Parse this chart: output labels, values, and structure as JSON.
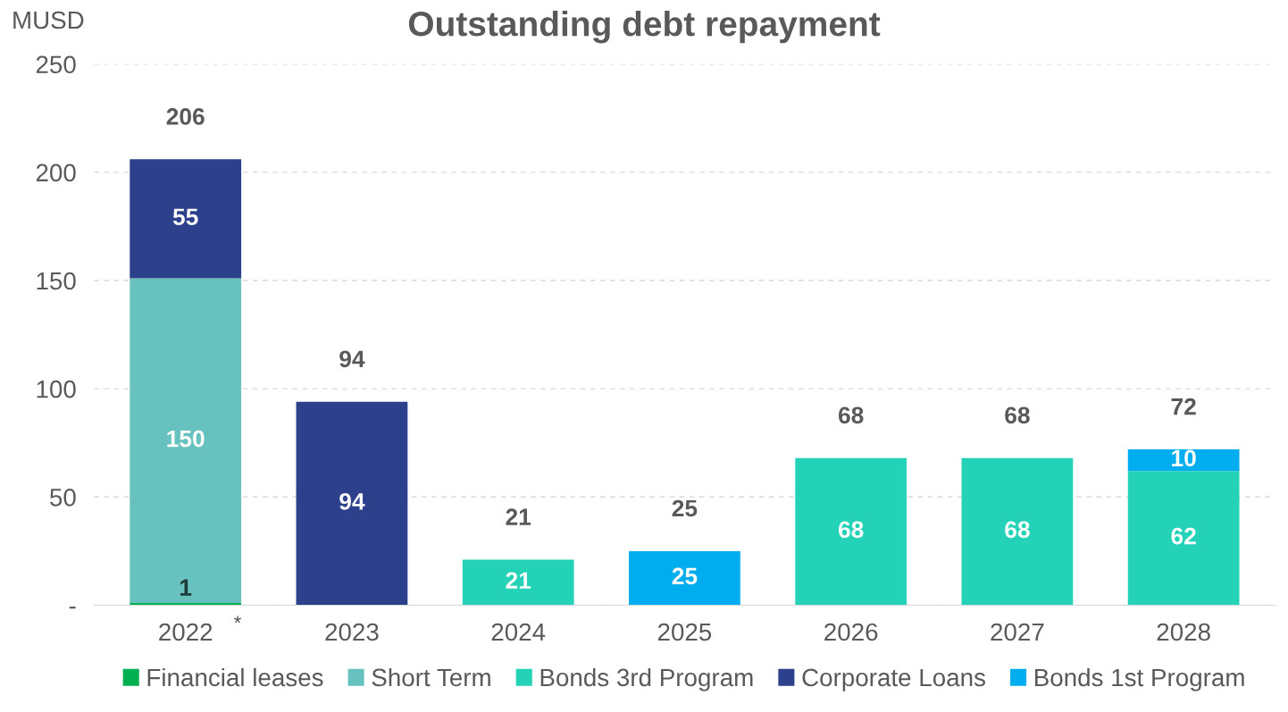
{
  "chart_data": {
    "type": "bar",
    "title": "Outstanding debt repayment",
    "ylabel": "MUSD",
    "stacked": true,
    "categories": [
      "2022",
      "2023",
      "2024",
      "2025",
      "2026",
      "2027",
      "2028"
    ],
    "series": [
      {
        "name": "Financial leases",
        "color": "#00b050",
        "values": [
          1,
          0,
          0,
          0,
          0,
          0,
          0
        ],
        "value_labels": [
          "1",
          null,
          null,
          null,
          null,
          null,
          null
        ]
      },
      {
        "name": "Short Term",
        "color": "#67c2bf",
        "values": [
          150,
          0,
          0,
          0,
          0,
          0,
          0
        ],
        "value_labels": [
          "150",
          null,
          null,
          null,
          null,
          null,
          null
        ]
      },
      {
        "name": "Bonds 3rd Program",
        "color": "#24d3b7",
        "values": [
          0,
          0,
          21,
          0,
          68,
          68,
          62
        ],
        "value_labels": [
          null,
          null,
          "21",
          null,
          "68",
          "68",
          "62"
        ]
      },
      {
        "name": "Corporate Loans",
        "color": "#2c408c",
        "values": [
          55,
          94,
          0,
          0,
          0,
          0,
          0
        ],
        "value_labels": [
          "55",
          "94",
          null,
          null,
          null,
          null,
          null
        ]
      },
      {
        "name": "Bonds 1st Program",
        "color": "#00aeef",
        "values": [
          0,
          0,
          0,
          25,
          0,
          0,
          10
        ],
        "value_labels": [
          null,
          null,
          null,
          "25",
          null,
          null,
          "10"
        ]
      }
    ],
    "totals": [
      "206",
      "94",
      "21",
      "25",
      "68",
      "68",
      "72"
    ],
    "ylim": [
      0,
      250
    ],
    "yticks": [
      {
        "value": 0,
        "label": "-"
      },
      50,
      100,
      150,
      200,
      250
    ],
    "grid": "y",
    "legend": "bottom",
    "annotations": [
      "*"
    ]
  }
}
